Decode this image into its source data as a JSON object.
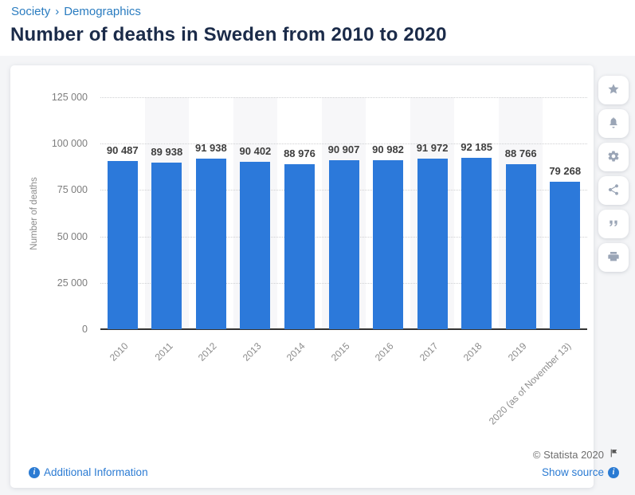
{
  "breadcrumb": {
    "items": [
      "Society",
      "Demographics"
    ],
    "separator": "›"
  },
  "page_title": "Number of deaths in Sweden from 2010 to 2020",
  "chart_data": {
    "type": "bar",
    "title": "Number of deaths in Sweden from 2010 to 2020",
    "categories": [
      "2010",
      "2011",
      "2012",
      "2013",
      "2014",
      "2015",
      "2016",
      "2017",
      "2018",
      "2019",
      "2020 (as of November 13)"
    ],
    "values": [
      90487,
      89938,
      91938,
      90402,
      88976,
      90907,
      90982,
      91972,
      92185,
      88766,
      79268
    ],
    "value_labels": [
      "90 487",
      "89 938",
      "91 938",
      "90 402",
      "88 976",
      "90 907",
      "90 982",
      "91 972",
      "92 185",
      "88 766",
      "79 268"
    ],
    "xlabel": "",
    "ylabel": "Number of deaths",
    "ylim": [
      0,
      125000
    ],
    "yticks": [
      0,
      25000,
      50000,
      75000,
      100000,
      125000
    ],
    "ytick_labels": [
      "0",
      "25 000",
      "50 000",
      "75 000",
      "100 000",
      "125 000"
    ],
    "grid": true,
    "legend": false,
    "bar_color": "#2c79da",
    "band_color": "#f7f7f9"
  },
  "toolbar": {
    "buttons": [
      {
        "name": "favorite",
        "icon": "star-icon"
      },
      {
        "name": "alerts",
        "icon": "bell-icon"
      },
      {
        "name": "settings",
        "icon": "gear-icon"
      },
      {
        "name": "share",
        "icon": "share-icon"
      },
      {
        "name": "cite",
        "icon": "quote-icon"
      },
      {
        "name": "print",
        "icon": "printer-icon"
      }
    ]
  },
  "footer": {
    "copyright": "© Statista 2020",
    "additional_info_label": "Additional Information",
    "show_source_label": "Show source",
    "flag_icon": "flag-icon",
    "info_icon": "info-icon"
  },
  "colors": {
    "bar": "#2c79da",
    "link": "#2b7bd3",
    "breadcrumb": "#2a7cc0",
    "title": "#1b2b49",
    "page_background": "#f4f5f7"
  }
}
